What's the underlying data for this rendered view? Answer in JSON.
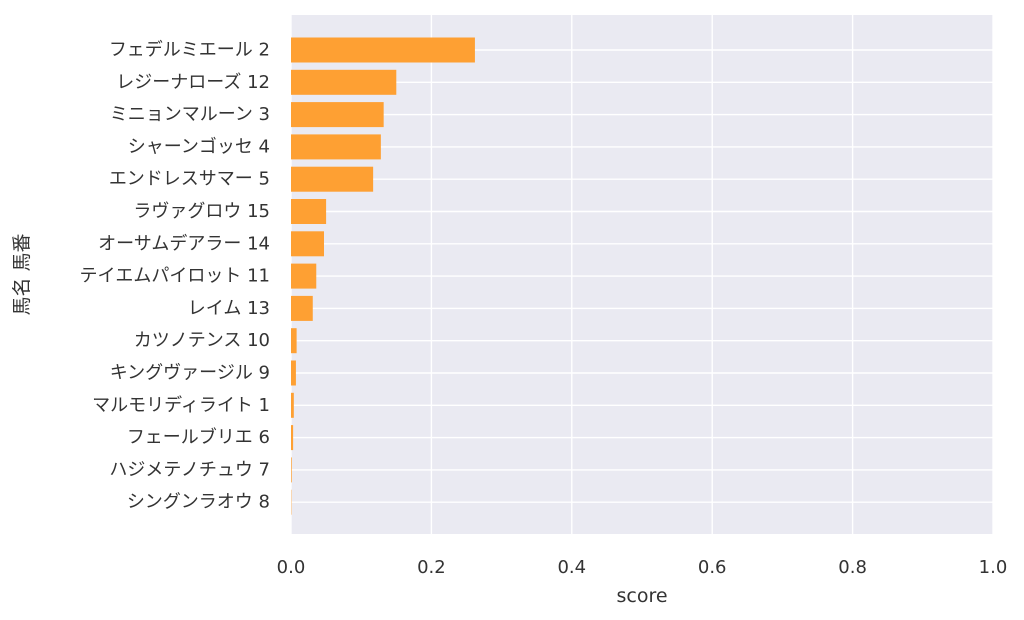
{
  "chart_data": {
    "type": "bar",
    "orientation": "horizontal",
    "categories": [
      "フェデルミエール 2",
      "レジーナローズ 12",
      "ミニョンマルーン 3",
      "シャーンゴッセ 4",
      "エンドレスサマー 5",
      "ラヴァグロウ 15",
      "オーサムデアラー 14",
      "テイエムパイロット 11",
      "レイム 13",
      "カツノテンス 10",
      "キングヴァージル 9",
      "マルモリディライト 1",
      "フェールブリエ 6",
      "ハジメテノチュウ 7",
      "シングンラオウ 8"
    ],
    "values": [
      0.262,
      0.15,
      0.132,
      0.128,
      0.117,
      0.05,
      0.047,
      0.036,
      0.031,
      0.008,
      0.007,
      0.004,
      0.003,
      0.001,
      0.0005
    ],
    "xlabel": "score",
    "ylabel": "馬名 馬番",
    "xlim": [
      0,
      1.0
    ],
    "xticks": [
      "0.0",
      "0.2",
      "0.4",
      "0.6",
      "0.8",
      "1.0"
    ],
    "grid": true,
    "colors": {
      "bar": "#fea033",
      "plot_background": "#eaeaf2",
      "grid": "#ffffff"
    }
  }
}
